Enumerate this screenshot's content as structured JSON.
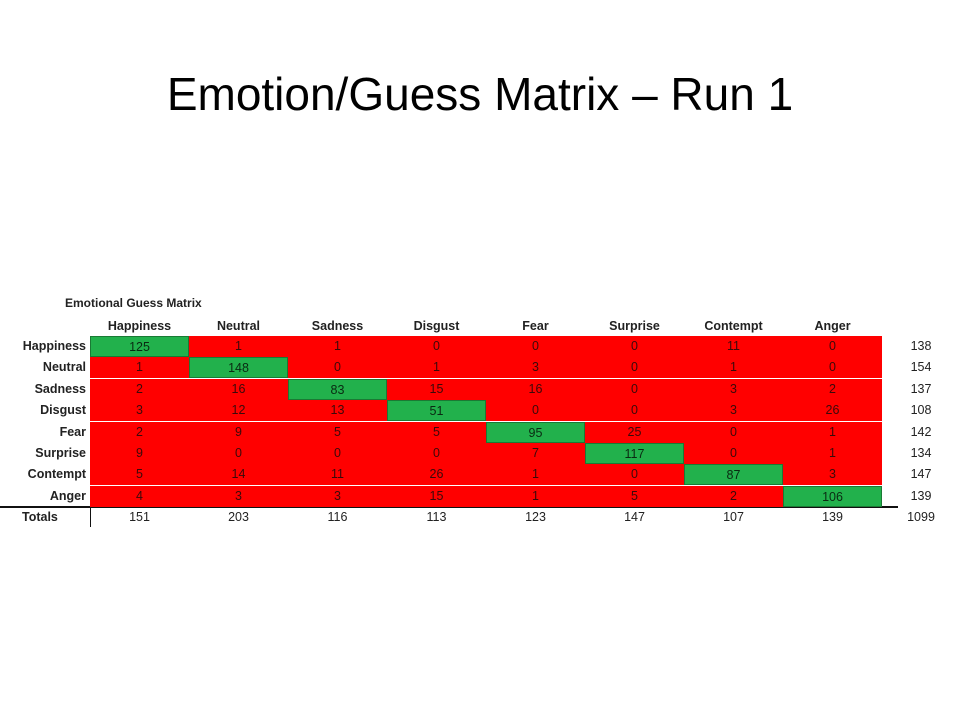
{
  "slide": {
    "title": "Emotion/Guess Matrix – Run 1"
  },
  "matrix": {
    "title": "Emotional Guess Matrix",
    "columns": [
      "Happiness",
      "Neutral",
      "Sadness",
      "Disgust",
      "Fear",
      "Surprise",
      "Contempt",
      "Anger"
    ],
    "rows": [
      {
        "label": "Happiness",
        "values": [
          "125",
          "1",
          "1",
          "0",
          "0",
          "0",
          "11",
          "0"
        ],
        "total": "138"
      },
      {
        "label": "Neutral",
        "values": [
          "1",
          "148",
          "0",
          "1",
          "3",
          "0",
          "1",
          "0"
        ],
        "total": "154"
      },
      {
        "label": "Sadness",
        "values": [
          "2",
          "16",
          "83",
          "15",
          "16",
          "0",
          "3",
          "2"
        ],
        "total": "137"
      },
      {
        "label": "Disgust",
        "values": [
          "3",
          "12",
          "13",
          "51",
          "0",
          "0",
          "3",
          "26"
        ],
        "total": "108"
      },
      {
        "label": "Fear",
        "values": [
          "2",
          "9",
          "5",
          "5",
          "95",
          "25",
          "0",
          "1"
        ],
        "total": "142"
      },
      {
        "label": "Surprise",
        "values": [
          "9",
          "0",
          "0",
          "0",
          "7",
          "117",
          "0",
          "1"
        ],
        "total": "134"
      },
      {
        "label": "Contempt",
        "values": [
          "5",
          "14",
          "11",
          "26",
          "1",
          "0",
          "87",
          "3"
        ],
        "total": "147"
      },
      {
        "label": "Anger",
        "values": [
          "4",
          "3",
          "3",
          "15",
          "1",
          "5",
          "2",
          "106"
        ],
        "total": "139"
      }
    ],
    "totals_label": "Totals",
    "column_totals": [
      "151",
      "203",
      "116",
      "113",
      "123",
      "147",
      "107",
      "139"
    ],
    "grand_total": "1099",
    "colors": {
      "correct": "#22b14c",
      "incorrect": "#ff0000"
    }
  }
}
